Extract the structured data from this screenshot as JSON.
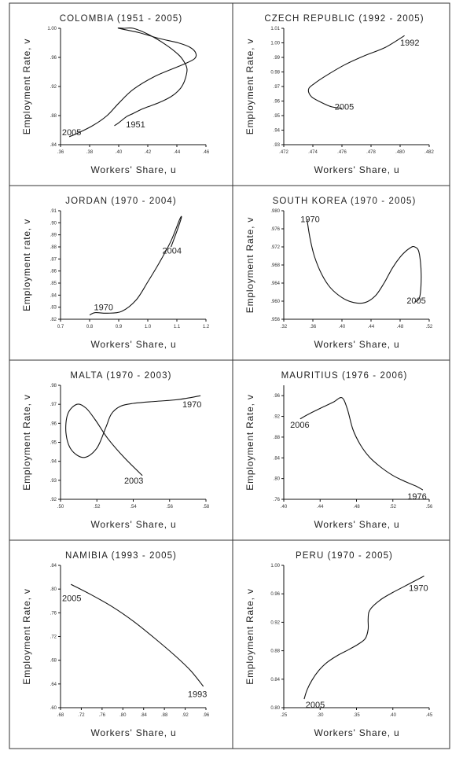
{
  "chart_data": [
    {
      "type": "line",
      "title": "COLOMBIA (1951 - 2005)",
      "xlabel": "Workers' Share, u",
      "ylabel": "Employment Rate, v",
      "xlim": [
        0.36,
        0.46
      ],
      "ylim": [
        0.84,
        1.0
      ],
      "x_ticks": [
        0.36,
        0.38,
        0.4,
        0.42,
        0.44,
        0.46
      ],
      "x_tick_labels": [
        ".36",
        ".38",
        ".40",
        ".42",
        ".44",
        ".46"
      ],
      "y_ticks": [
        0.84,
        0.88,
        0.92,
        0.96,
        1.0
      ],
      "y_tick_labels": [
        ".84",
        ".88",
        ".92",
        ".96",
        "1.00"
      ],
      "series": [
        {
          "x": [
            0.397,
            0.4,
            0.405,
            0.41,
            0.415,
            0.42,
            0.428,
            0.436,
            0.441,
            0.444,
            0.446,
            0.447,
            0.445,
            0.441,
            0.432,
            0.42,
            0.41,
            0.404,
            0.4,
            0.414,
            0.428,
            0.441,
            0.449,
            0.453,
            0.452,
            0.444,
            0.425,
            0.41,
            0.4,
            0.392,
            0.382,
            0.372,
            0.366
          ],
          "y": [
            0.866,
            0.87,
            0.878,
            0.883,
            0.888,
            0.892,
            0.898,
            0.906,
            0.914,
            0.922,
            0.932,
            0.944,
            0.954,
            0.964,
            0.978,
            0.992,
            1.0,
            1.0,
            1.0,
            0.994,
            0.986,
            0.98,
            0.974,
            0.966,
            0.958,
            0.95,
            0.934,
            0.916,
            0.897,
            0.88,
            0.866,
            0.856,
            0.851
          ]
        }
      ],
      "annotations": [
        {
          "text": "2005",
          "x": 0.361,
          "y": 0.853
        },
        {
          "text": "1951",
          "x": 0.405,
          "y": 0.864
        }
      ]
    },
    {
      "type": "line",
      "title": "CZECH REPUBLIC (1992 - 2005)",
      "xlabel": "Workers' Share, u",
      "ylabel": "Employment Rate, v",
      "xlim": [
        0.472,
        0.482
      ],
      "ylim": [
        0.93,
        1.01
      ],
      "x_ticks": [
        0.472,
        0.474,
        0.476,
        0.478,
        0.48,
        0.482
      ],
      "x_tick_labels": [
        ".472",
        ".474",
        ".476",
        ".478",
        ".480",
        ".482"
      ],
      "y_ticks": [
        0.93,
        0.94,
        0.95,
        0.96,
        0.97,
        0.98,
        0.99,
        1.0,
        1.01
      ],
      "y_tick_labels": [
        ".93",
        ".94",
        ".95",
        ".96",
        ".97",
        "0.98",
        ".99",
        "1.00",
        "1.01"
      ],
      "series": [
        {
          "x": [
            0.4803,
            0.479,
            0.4775,
            0.4762,
            0.475,
            0.4741,
            0.4737,
            0.4739,
            0.4746,
            0.4753,
            0.476
          ],
          "y": [
            1.005,
            0.997,
            0.991,
            0.985,
            0.978,
            0.972,
            0.968,
            0.963,
            0.959,
            0.956,
            0.955
          ]
        }
      ],
      "annotations": [
        {
          "text": "1992",
          "x": 0.48,
          "y": 0.998
        },
        {
          "text": "2005",
          "x": 0.4755,
          "y": 0.954
        }
      ]
    },
    {
      "type": "line",
      "title": "JORDAN (1970 - 2004)",
      "xlabel": "Workers' Share, u",
      "ylabel": "Employment rate, v",
      "xlim": [
        0.7,
        1.2
      ],
      "ylim": [
        0.82,
        0.91
      ],
      "x_ticks": [
        0.7,
        0.8,
        0.9,
        1.0,
        1.1,
        1.2
      ],
      "x_tick_labels": [
        "0.7",
        "0.8",
        "0.9",
        "1.0",
        "1.1",
        "1.2"
      ],
      "y_ticks": [
        0.82,
        0.83,
        0.84,
        0.85,
        0.86,
        0.87,
        0.88,
        0.89,
        0.9,
        0.91
      ],
      "y_tick_labels": [
        ".82",
        ".83",
        ".84",
        ".85",
        ".86",
        ".87",
        ".88",
        ".89",
        ".90",
        ".91"
      ],
      "series": [
        {
          "x": [
            0.8,
            0.82,
            0.86,
            0.91,
            0.96,
            1.0,
            1.04,
            1.08,
            1.11,
            1.115,
            1.1,
            1.08
          ],
          "y": [
            0.8235,
            0.8255,
            0.825,
            0.8265,
            0.836,
            0.851,
            0.867,
            0.885,
            0.903,
            0.904,
            0.893,
            0.88
          ]
        }
      ],
      "annotations": [
        {
          "text": "1970",
          "x": 0.815,
          "y": 0.8275
        },
        {
          "text": "2004",
          "x": 1.05,
          "y": 0.8745
        }
      ]
    },
    {
      "type": "line",
      "title": "SOUTH KOREA (1970 - 2005)",
      "xlabel": "Workers' Share, u",
      "ylabel": "Employment Rate, v",
      "xlim": [
        0.32,
        0.52
      ],
      "ylim": [
        0.956,
        0.98
      ],
      "x_ticks": [
        0.32,
        0.36,
        0.4,
        0.44,
        0.48,
        0.52
      ],
      "x_tick_labels": [
        ".32",
        ".36",
        ".40",
        ".44",
        ".48",
        ".52"
      ],
      "y_ticks": [
        0.956,
        0.96,
        0.964,
        0.968,
        0.972,
        0.976,
        0.98
      ],
      "y_tick_labels": [
        ".956",
        ".960",
        ".964",
        ".968",
        ".972",
        ".976",
        ".980"
      ],
      "series": [
        {
          "x": [
            0.352,
            0.356,
            0.362,
            0.372,
            0.384,
            0.4,
            0.416,
            0.432,
            0.446,
            0.458,
            0.47,
            0.483,
            0.494,
            0.5,
            0.506,
            0.509,
            0.507,
            0.5
          ],
          "y": [
            0.978,
            0.974,
            0.97,
            0.966,
            0.963,
            0.9608,
            0.9597,
            0.9597,
            0.9612,
            0.964,
            0.9675,
            0.9703,
            0.9718,
            0.972,
            0.9708,
            0.966,
            0.961,
            0.9598
          ]
        }
      ],
      "annotations": [
        {
          "text": "1970",
          "x": 0.343,
          "y": 0.9775
        },
        {
          "text": "2005",
          "x": 0.489,
          "y": 0.9595
        }
      ]
    },
    {
      "type": "line",
      "title": "MALTA (1970 - 2003)",
      "xlabel": "Workers' Share, u",
      "ylabel": "Employment Rate, v",
      "xlim": [
        0.5,
        0.58
      ],
      "ylim": [
        0.92,
        0.98
      ],
      "x_ticks": [
        0.5,
        0.52,
        0.54,
        0.56,
        0.58
      ],
      "x_tick_labels": [
        ".50",
        ".52",
        ".54",
        ".56",
        ".58"
      ],
      "y_ticks": [
        0.92,
        0.93,
        0.94,
        0.95,
        0.96,
        0.97,
        0.98
      ],
      "y_tick_labels": [
        ".92",
        ".93",
        ".94",
        ".95",
        ".96",
        ".97",
        ".98"
      ],
      "series": [
        {
          "x": [
            0.577,
            0.565,
            0.552,
            0.54,
            0.533,
            0.528,
            0.525,
            0.52,
            0.513,
            0.506,
            0.503,
            0.504,
            0.509,
            0.514,
            0.519,
            0.526,
            0.535,
            0.545
          ],
          "y": [
            0.9745,
            0.9725,
            0.9715,
            0.9705,
            0.969,
            0.965,
            0.958,
            0.947,
            0.942,
            0.946,
            0.955,
            0.965,
            0.97,
            0.968,
            0.962,
            0.952,
            0.942,
            0.9325
          ]
        }
      ],
      "annotations": [
        {
          "text": "1970",
          "x": 0.567,
          "y": 0.9685
        },
        {
          "text": "2003",
          "x": 0.535,
          "y": 0.9282
        }
      ]
    },
    {
      "type": "line",
      "title": "MAURITIUS (1976 - 2006)",
      "xlabel": "Workers' Share, u",
      "ylabel": "Employment Rate, v",
      "xlim": [
        0.4,
        0.56
      ],
      "ylim": [
        0.76,
        0.98
      ],
      "x_ticks": [
        0.4,
        0.44,
        0.48,
        0.52,
        0.56
      ],
      "x_tick_labels": [
        ".40",
        ".44",
        ".48",
        ".52",
        ".56"
      ],
      "y_ticks": [
        0.76,
        0.8,
        0.84,
        0.88,
        0.92,
        0.96
      ],
      "y_tick_labels": [
        ".76",
        ".80",
        ".84",
        ".88",
        ".92",
        ".96"
      ],
      "series": [
        {
          "x": [
            0.418,
            0.428,
            0.442,
            0.455,
            0.464,
            0.47,
            0.476,
            0.484,
            0.494,
            0.506,
            0.52,
            0.534,
            0.546,
            0.553
          ],
          "y": [
            0.915,
            0.925,
            0.937,
            0.948,
            0.956,
            0.934,
            0.895,
            0.866,
            0.842,
            0.823,
            0.806,
            0.794,
            0.785,
            0.778
          ]
        }
      ],
      "annotations": [
        {
          "text": "2006",
          "x": 0.407,
          "y": 0.898
        },
        {
          "text": "1976",
          "x": 0.536,
          "y": 0.76
        }
      ]
    },
    {
      "type": "line",
      "title": "NAMIBIA (1993 - 2005)",
      "xlabel": "Workers' Share, u",
      "ylabel": "Employment Rate, v",
      "xlim": [
        0.68,
        0.96
      ],
      "ylim": [
        0.6,
        0.84
      ],
      "x_ticks": [
        0.68,
        0.72,
        0.76,
        0.8,
        0.84,
        0.88,
        0.92,
        0.96
      ],
      "x_tick_labels": [
        ".68",
        ".72",
        ".76",
        ".80",
        ".84",
        ".88",
        ".92",
        ".96"
      ],
      "y_ticks": [
        0.6,
        0.64,
        0.68,
        0.72,
        0.76,
        0.8,
        0.84
      ],
      "y_tick_labels": [
        ".60",
        ".64",
        ".68",
        ".72",
        ".76",
        ".80",
        ".84"
      ],
      "series": [
        {
          "x": [
            0.7,
            0.74,
            0.78,
            0.82,
            0.86,
            0.9,
            0.93,
            0.955
          ],
          "y": [
            0.808,
            0.79,
            0.77,
            0.746,
            0.718,
            0.688,
            0.663,
            0.636
          ]
        }
      ],
      "annotations": [
        {
          "text": "2005",
          "x": 0.683,
          "y": 0.78
        },
        {
          "text": "1993",
          "x": 0.925,
          "y": 0.618
        }
      ]
    },
    {
      "type": "line",
      "title": "PERU (1970 - 2005)",
      "xlabel": "Workers' Share, u",
      "ylabel": "Employment Rate, v",
      "xlim": [
        0.25,
        0.45
      ],
      "ylim": [
        0.8,
        1.0
      ],
      "x_ticks": [
        0.25,
        0.3,
        0.35,
        0.4,
        0.45
      ],
      "x_tick_labels": [
        ".25",
        ".30",
        ".35",
        ".40",
        ".45"
      ],
      "y_ticks": [
        0.8,
        0.84,
        0.88,
        0.92,
        0.96,
        1.0
      ],
      "y_tick_labels": [
        "0.80",
        "0.84",
        "0.88",
        "0.92",
        "0.96",
        "1.00"
      ],
      "series": [
        {
          "x": [
            0.443,
            0.43,
            0.415,
            0.4,
            0.385,
            0.372,
            0.367,
            0.366,
            0.366,
            0.362,
            0.352,
            0.34,
            0.325,
            0.31,
            0.298,
            0.289,
            0.282,
            0.278
          ],
          "y": [
            0.985,
            0.978,
            0.97,
            0.962,
            0.953,
            0.942,
            0.934,
            0.924,
            0.91,
            0.897,
            0.889,
            0.882,
            0.874,
            0.864,
            0.852,
            0.839,
            0.825,
            0.812
          ]
        }
      ],
      "annotations": [
        {
          "text": "1970",
          "x": 0.422,
          "y": 0.964
        },
        {
          "text": "2005",
          "x": 0.28,
          "y": 0.8
        }
      ]
    }
  ]
}
